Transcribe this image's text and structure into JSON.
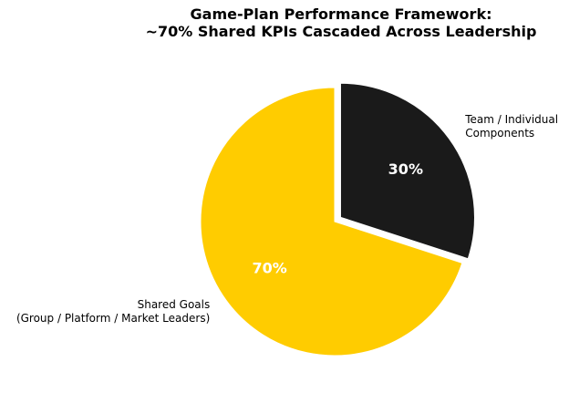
{
  "chart_data": {
    "type": "pie",
    "title": "Game-Plan Performance Framework:\n~70% Shared KPIs Cascaded Across Leadership",
    "categories": [
      "Team / Individual\nComponents",
      "Shared Goals\n(Group / Platform / Market Leaders)"
    ],
    "values": [
      30,
      70
    ],
    "value_labels": [
      "30%",
      "70%"
    ],
    "colors": [
      "#1a1a1a",
      "#ffcc00"
    ]
  }
}
